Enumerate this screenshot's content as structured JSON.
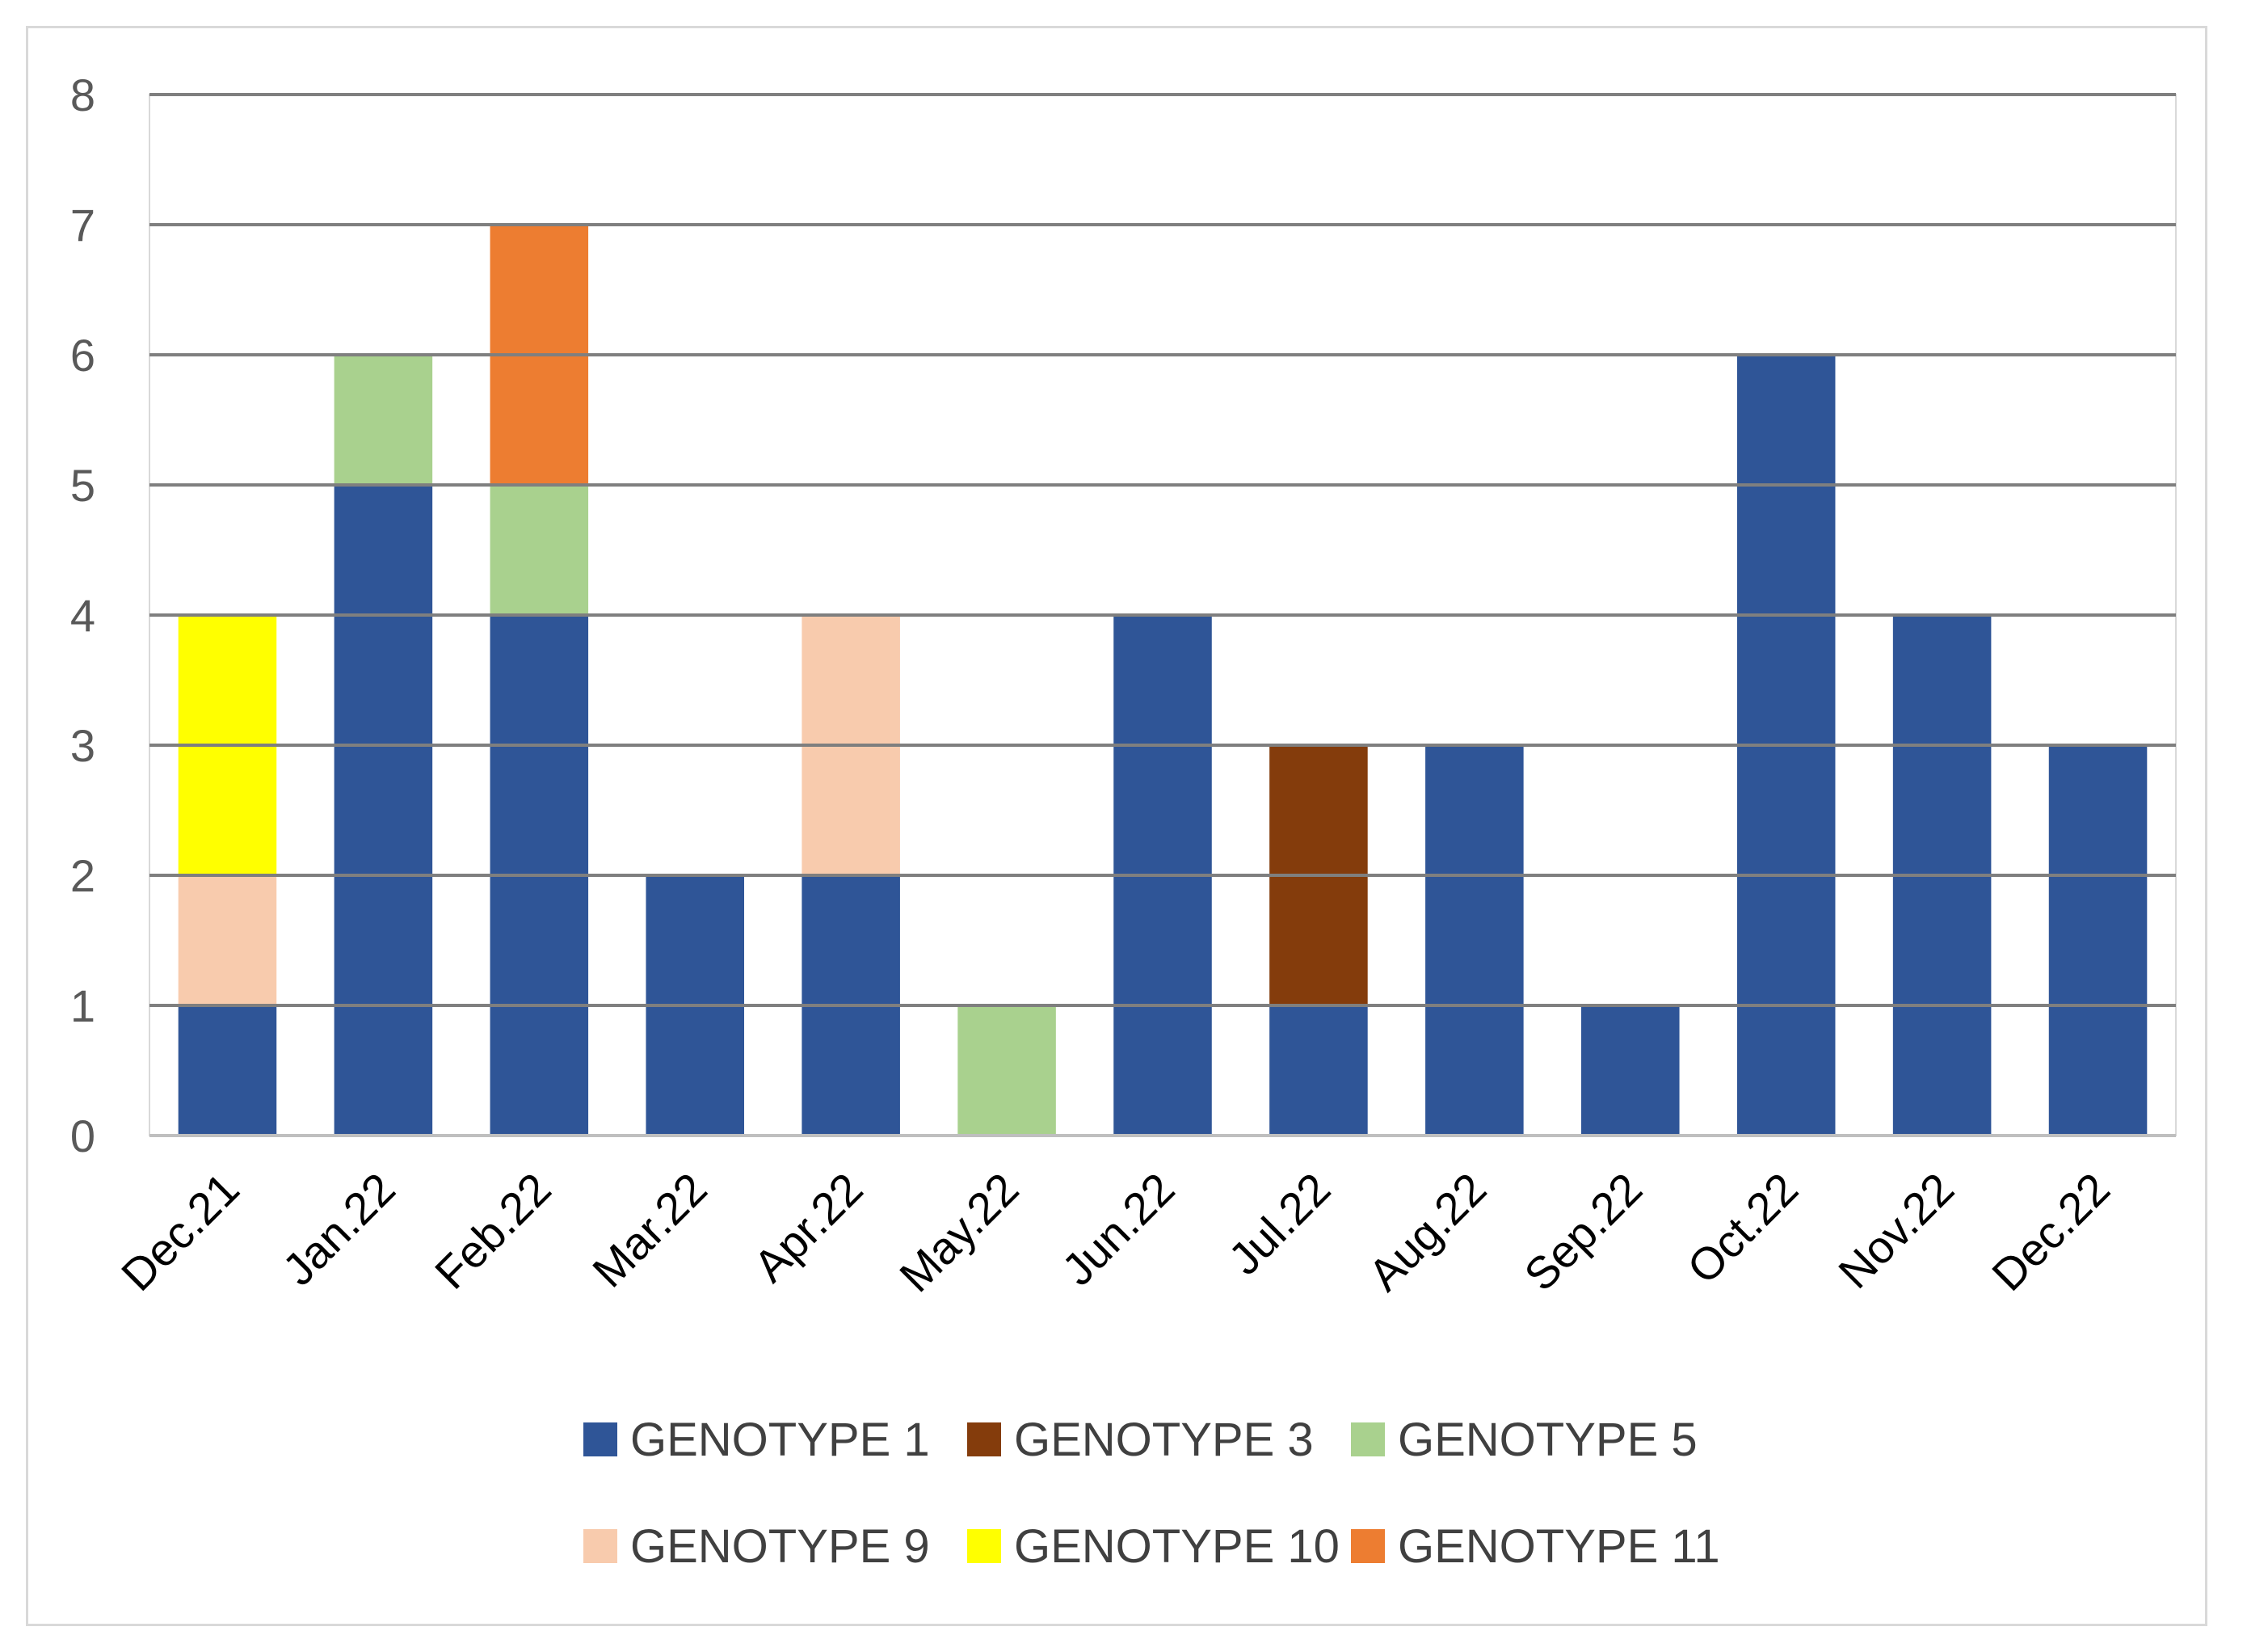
{
  "chart_data": {
    "type": "bar",
    "stacked": true,
    "title": "",
    "xlabel": "",
    "ylabel": "",
    "ylim": [
      0,
      8
    ],
    "yticks": [
      0,
      1,
      2,
      3,
      4,
      5,
      6,
      7,
      8
    ],
    "yticks_text": [
      "0",
      "1",
      "2",
      "3",
      "4",
      "5",
      "6",
      "7",
      "8"
    ],
    "grid": true,
    "legend_position": "bottom",
    "categories": [
      "Dec.21",
      "Jan.22",
      "Feb.22",
      "Mar.22",
      "Apr.22",
      "May.22",
      "Jun.22",
      "Jul.22",
      "Aug.22",
      "Sep.22",
      "Oct.22",
      "Nov.22",
      "Dec.22"
    ],
    "series": [
      {
        "name": "GENOTYPE 1",
        "color": "#2F5597",
        "values": [
          1,
          5,
          4,
          2,
          2,
          0,
          4,
          1,
          3,
          1,
          6,
          4,
          3
        ]
      },
      {
        "name": "GENOTYPE 3",
        "color": "#843C0C",
        "values": [
          0,
          0,
          0,
          0,
          0,
          0,
          0,
          2,
          0,
          0,
          0,
          0,
          0
        ]
      },
      {
        "name": "GENOTYPE 5",
        "color": "#A9D18E",
        "values": [
          0,
          1,
          1,
          0,
          0,
          1,
          0,
          0,
          0,
          0,
          0,
          0,
          0
        ]
      },
      {
        "name": "GENOTYPE 9",
        "color": "#F8CBAD",
        "values": [
          1,
          0,
          0,
          0,
          2,
          0,
          0,
          0,
          0,
          0,
          0,
          0,
          0
        ]
      },
      {
        "name": "GENOTYPE 10",
        "color": "#FFFF00",
        "values": [
          2,
          0,
          0,
          0,
          0,
          0,
          0,
          0,
          0,
          0,
          0,
          0,
          0
        ]
      },
      {
        "name": "GENOTYPE 11",
        "color": "#ED7D31",
        "values": [
          0,
          0,
          2,
          0,
          0,
          0,
          0,
          0,
          0,
          0,
          0,
          0,
          0
        ]
      }
    ]
  },
  "colors": {
    "gridline": "#7F7F7F",
    "axis": "#BFBFBF",
    "frame": "#D9D9D9"
  }
}
